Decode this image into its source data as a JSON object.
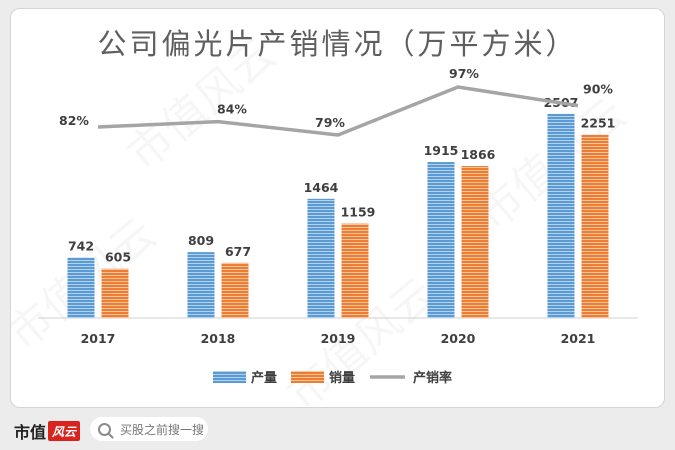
{
  "chart_data": {
    "type": "bar",
    "title": "公司偏光片产销情况（万平方米）",
    "categories": [
      "2017",
      "2018",
      "2019",
      "2020",
      "2021"
    ],
    "series": [
      {
        "name": "产量",
        "type": "bar",
        "values": [
          742,
          809,
          1464,
          1915,
          2507
        ],
        "color": "#5b9bd5"
      },
      {
        "name": "销量",
        "type": "bar",
        "values": [
          605,
          677,
          1159,
          1866,
          2251
        ],
        "color": "#ed7d31"
      },
      {
        "name": "产销率",
        "type": "line",
        "values": [
          82,
          84,
          79,
          97,
          90
        ],
        "labels": [
          "82%",
          "84%",
          "79%",
          "97%",
          "90%"
        ],
        "color": "#a5a5a5"
      }
    ],
    "ylim": [
      0,
      2800
    ],
    "y2lim": [
      0,
      120
    ],
    "grid": false,
    "legend": "bottom"
  },
  "watermark": "市值风云",
  "footer": {
    "brand": "市值",
    "logo": "风云",
    "search_placeholder": "买股之前搜一搜"
  }
}
